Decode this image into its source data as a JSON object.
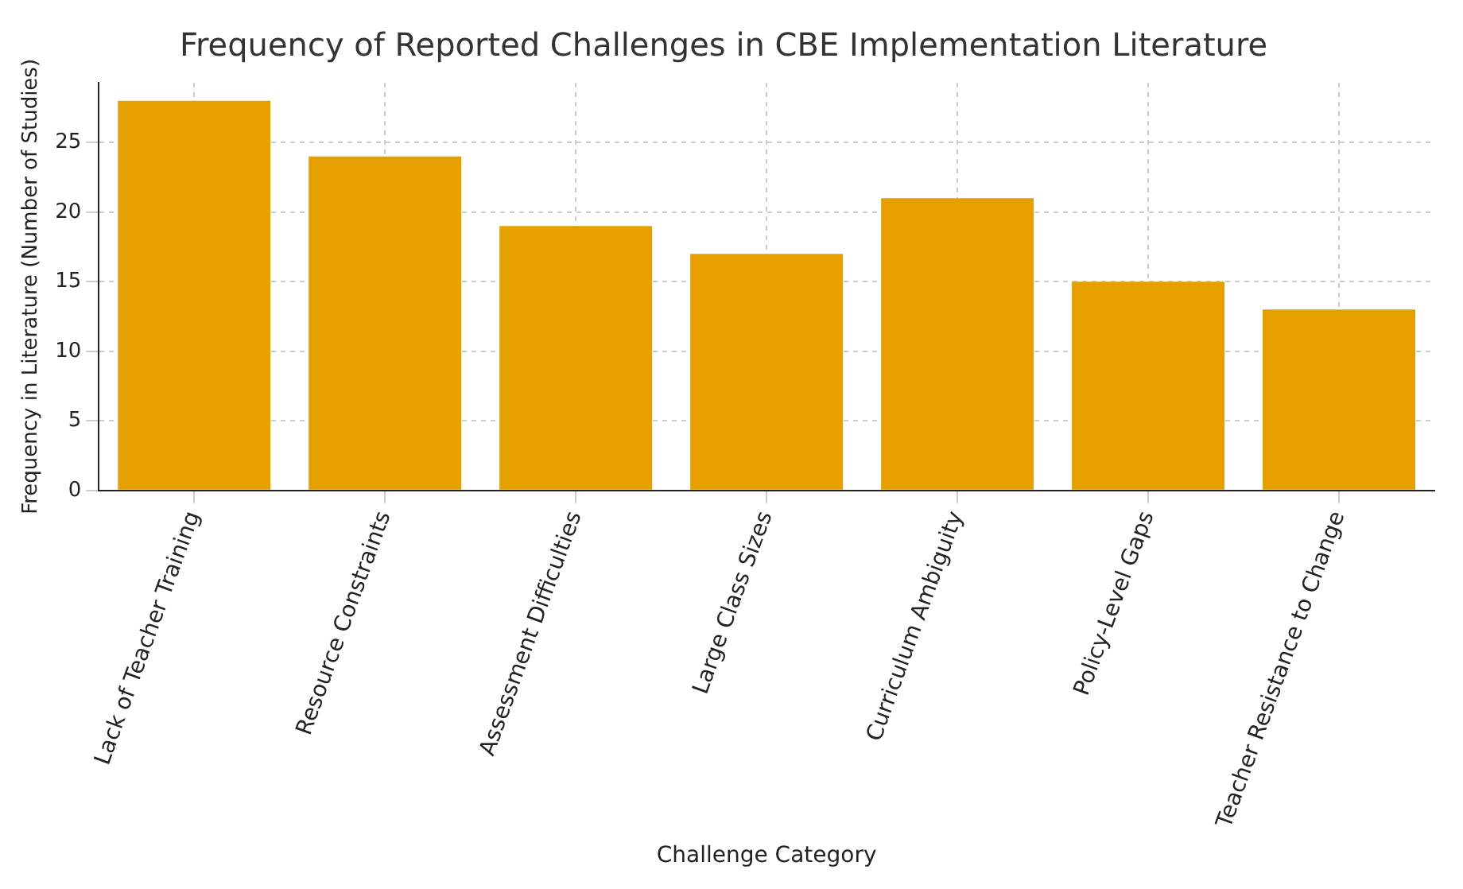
{
  "chart_data": {
    "type": "bar",
    "title": "Frequency of Reported Challenges in CBE Implementation Literature",
    "xlabel": "Challenge Category",
    "ylabel": "Frequency in Literature (Number of Studies)",
    "categories": [
      "Lack of Teacher Training",
      "Resource Constraints",
      "Assessment Difficulties",
      "Large Class Sizes",
      "Curriculum Ambiguity",
      "Policy-Level Gaps",
      "Teacher Resistance to Change"
    ],
    "values": [
      28,
      24,
      19,
      17,
      21,
      15,
      13
    ],
    "color": "#e5a000",
    "ylim": [
      0,
      29.3
    ],
    "yticks": [
      0,
      5,
      10,
      15,
      20,
      25
    ],
    "grid": true
  }
}
